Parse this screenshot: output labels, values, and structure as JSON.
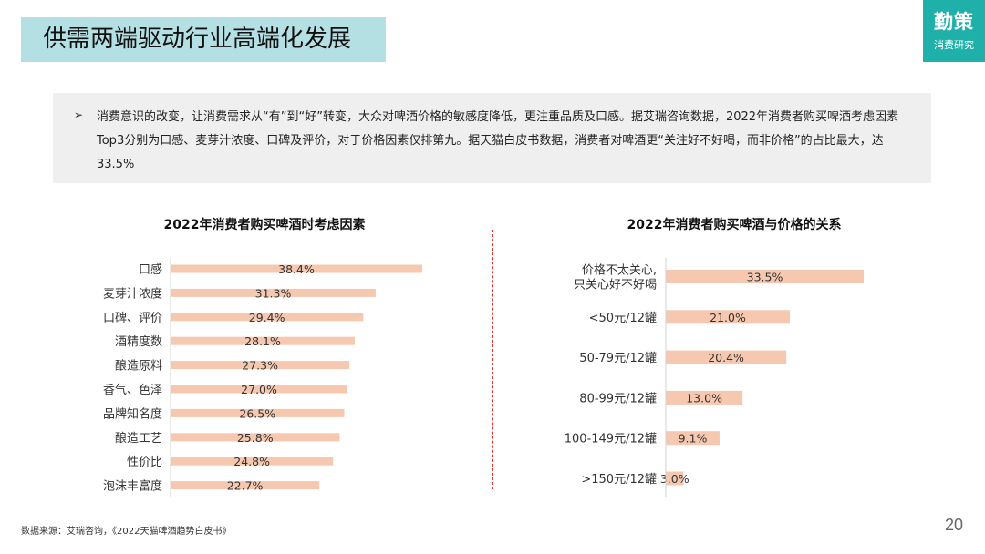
{
  "header": {
    "title": "供需两端驱动行业高端化发展",
    "logo_main": "勤策",
    "logo_sub": "消费研究"
  },
  "description": {
    "bullet": "➢",
    "text": "消费意识的改变，让消费需求从“有”到“好”转变，大众对啤酒价格的敏感度降低，更注重品质及口感。据艾瑞咨询数据，2022年消费者购买啤酒考虑因素Top3分别为口感、麦芽汁浓度、口碑及评价，对于价格因素仅排第九。据天猫白皮书数据，消费者对啤酒更“关注好不好喝，而非价格”的占比最大，达33.5%"
  },
  "colors": {
    "bar": "#f7c8b0",
    "accent": "#1fb0aa",
    "title_bg": "#b4dfe3",
    "divider": "#e03030"
  },
  "chart_data": [
    {
      "type": "bar",
      "orientation": "horizontal",
      "title": "2022年消费者购买啤酒时考虑因素",
      "categories": [
        "口感",
        "麦芽汁浓度",
        "口碑、评价",
        "酒精度数",
        "酿造原料",
        "香气、色泽",
        "品牌知名度",
        "酿造工艺",
        "性价比",
        "泡沫丰富度"
      ],
      "values": [
        38.4,
        31.3,
        29.4,
        28.1,
        27.3,
        27.0,
        26.5,
        25.8,
        24.8,
        22.7
      ],
      "value_labels": [
        "38.4%",
        "31.3%",
        "29.4%",
        "28.1%",
        "27.3%",
        "27.0%",
        "26.5%",
        "25.8%",
        "24.8%",
        "22.7%"
      ],
      "unit": "%"
    },
    {
      "type": "bar",
      "orientation": "horizontal",
      "title": "2022年消费者购买啤酒与价格的关系",
      "categories": [
        [
          "价格不太关心,",
          "只关心好不好喝"
        ],
        [
          "<50元/12罐"
        ],
        [
          "50-79元/12罐"
        ],
        [
          "80-99元/12罐"
        ],
        [
          "100-149元/12罐"
        ],
        [
          ">150元/12罐"
        ]
      ],
      "values": [
        33.5,
        21.0,
        20.4,
        13.0,
        9.1,
        3.0
      ],
      "value_labels": [
        "33.5%",
        "21.0%",
        "20.4%",
        "13.0%",
        "9.1%",
        "3.0%"
      ],
      "unit": "%"
    }
  ],
  "footer": {
    "source": "数据来源：艾瑞咨询，《2022天猫啤酒趋势白皮书》",
    "page_number": "20"
  }
}
